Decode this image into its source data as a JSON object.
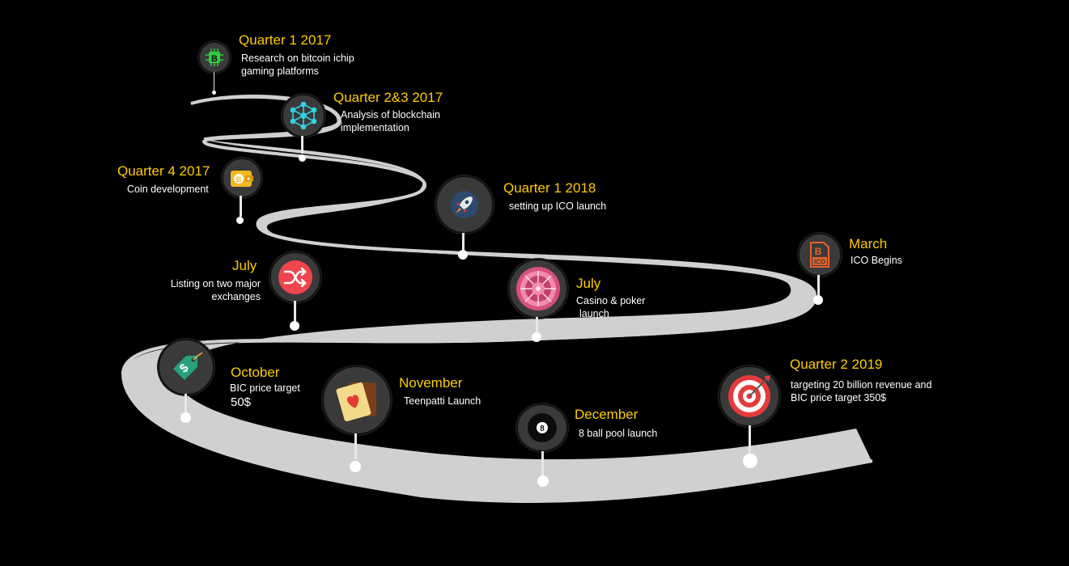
{
  "milestones": {
    "q1_2017": {
      "title": "Quarter 1 2017",
      "line1": "Research on bitcoin ichip",
      "line2": "gaming platforms",
      "icon": "bitcoin-chip-icon"
    },
    "q23_2017": {
      "title": "Quarter 2&3 2017",
      "line1": "Analysis of blockchain",
      "line2": "implementation",
      "icon": "network-icon"
    },
    "q4_2017": {
      "title": "Quarter 4 2017",
      "line1": "Coin development",
      "icon": "wallet-icon"
    },
    "q1_2018": {
      "title": "Quarter 1 2018",
      "line1": "setting up ICO launch",
      "icon": "rocket-icon"
    },
    "march": {
      "title": "March",
      "line1": "ICO Begins",
      "icon": "ico-document-icon"
    },
    "july1": {
      "title": "July",
      "line1": "Listing on two major",
      "line2": "exchanges",
      "icon": "shuffle-icon"
    },
    "july2": {
      "title": "July",
      "line1": "Casino & poker",
      "line2": "launch",
      "icon": "roulette-icon"
    },
    "october": {
      "title": "October",
      "line1": "BIC price target",
      "line2": "50$",
      "icon": "price-tag-icon"
    },
    "november": {
      "title": "November",
      "line1": "Teenpatti Launch",
      "icon": "playing-card-icon"
    },
    "december": {
      "title": "December",
      "line1": "8 ball pool launch",
      "icon": "eight-ball-icon"
    },
    "q2_2019": {
      "title": "Quarter 2 2019",
      "line1": "targeting 20 billion revenue and",
      "line2": "BIC price target 350$",
      "icon": "target-icon"
    }
  },
  "colors": {
    "background": "#000000",
    "road": "#d0d0d0",
    "title": "#ffcc00",
    "text": "#ffffff",
    "icon_bg": "#3a3a3a"
  }
}
